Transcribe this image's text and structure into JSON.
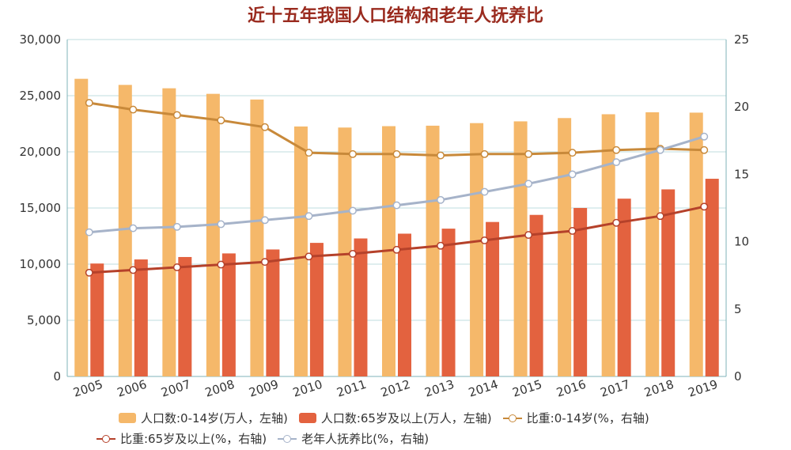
{
  "chart_data": {
    "type": "bar+line",
    "title": "近十五年我国人口结构和老年人抚养比",
    "categories": [
      "2005",
      "2006",
      "2007",
      "2008",
      "2009",
      "2010",
      "2011",
      "2012",
      "2013",
      "2014",
      "2015",
      "2016",
      "2017",
      "2018",
      "2019"
    ],
    "left_axis": {
      "ylim": [
        0,
        30000
      ],
      "ticks": [
        "0",
        "5,000",
        "10,000",
        "15,000",
        "20,000",
        "25,000",
        "30,000"
      ]
    },
    "right_axis": {
      "ylim": [
        0,
        25
      ],
      "ticks": [
        "0",
        "5",
        "10",
        "15",
        "20",
        "25"
      ]
    },
    "grid": true,
    "legend_position": "bottom",
    "series": [
      {
        "name": "人口数:0-14岁(万人，左轴)",
        "type": "bar",
        "axis": "left",
        "color": "#f5b86a",
        "values": [
          26504,
          25961,
          25660,
          25166,
          24659,
          22259,
          22164,
          22287,
          22329,
          22558,
          22715,
          23008,
          23348,
          23523,
          23492
        ]
      },
      {
        "name": "人口数:65岁及以上(万人，左轴)",
        "type": "bar",
        "axis": "left",
        "color": "#e3623f",
        "values": [
          10055,
          10419,
          10636,
          10956,
          11307,
          11894,
          12288,
          12714,
          13161,
          13755,
          14386,
          15003,
          15831,
          16658,
          17603
        ]
      },
      {
        "name": "比重:0-14岁(%，右轴)",
        "type": "line",
        "axis": "right",
        "color": "#c8893a",
        "values": [
          20.3,
          19.8,
          19.4,
          19.0,
          18.5,
          16.6,
          16.5,
          16.5,
          16.4,
          16.5,
          16.5,
          16.6,
          16.8,
          16.9,
          16.8
        ]
      },
      {
        "name": "比重:65岁及以上(%，右轴)",
        "type": "line",
        "axis": "right",
        "color": "#b5412a",
        "values": [
          7.7,
          7.9,
          8.1,
          8.3,
          8.5,
          8.9,
          9.1,
          9.4,
          9.7,
          10.1,
          10.5,
          10.8,
          11.4,
          11.9,
          12.6
        ]
      },
      {
        "name": "老年人抚养比(%，右轴)",
        "type": "line",
        "axis": "right",
        "color": "#a6b3c9",
        "values": [
          10.7,
          11.0,
          11.1,
          11.3,
          11.6,
          11.9,
          12.3,
          12.7,
          13.1,
          13.7,
          14.3,
          15.0,
          15.9,
          16.8,
          17.8
        ]
      }
    ]
  }
}
